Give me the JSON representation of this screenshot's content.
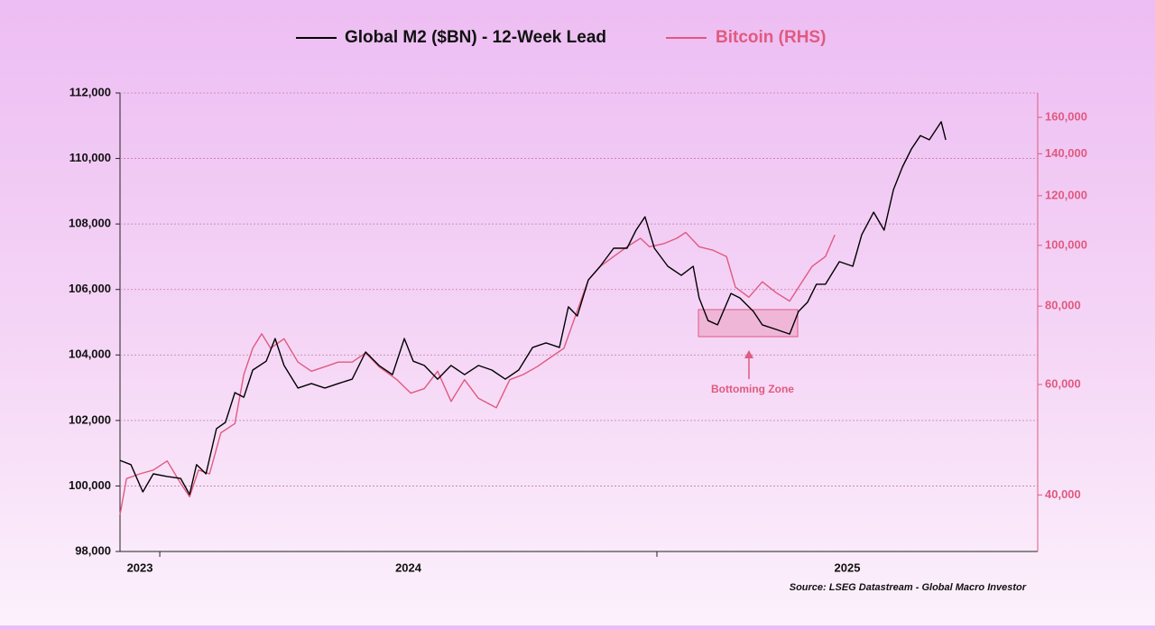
{
  "chart_data": {
    "type": "line",
    "source": "Source: LSEG Datastream - Global Macro Investor",
    "annotation": "Bottoming Zone",
    "legend_position": "top",
    "grid": true,
    "y2_log_scale": true,
    "xlim": [
      2023.92,
      2025.766
    ],
    "xticks": [
      2023,
      2024,
      2025
    ],
    "ylim": [
      98000,
      112000
    ],
    "yticks": [
      {
        "value": 98000,
        "label": "98,000"
      },
      {
        "value": 100000,
        "label": "100,000"
      },
      {
        "value": 102000,
        "label": "102,000"
      },
      {
        "value": 104000,
        "label": "104,000"
      },
      {
        "value": 106000,
        "label": "106,000"
      },
      {
        "value": 108000,
        "label": "108,000"
      },
      {
        "value": 110000,
        "label": "110,000"
      },
      {
        "value": 112000,
        "label": "112,000"
      }
    ],
    "y2lim": [
      32500,
      175000
    ],
    "y2ticks": [
      {
        "value": 40000,
        "label": "40,000"
      },
      {
        "value": 60000,
        "label": "60,000"
      },
      {
        "value": 80000,
        "label": "80,000"
      },
      {
        "value": 100000,
        "label": "100,000"
      },
      {
        "value": 120000,
        "label": "120,000"
      },
      {
        "value": 140000,
        "label": "140,000"
      },
      {
        "value": 160000,
        "label": "160,000"
      }
    ],
    "series": [
      {
        "name": "Global M2 ($BN) - 12-Week Lead",
        "color": "#000000",
        "x": [
          2023.92,
          2023.942,
          2023.966,
          2023.987,
          2024.015,
          2024.042,
          2024.06,
          2024.074,
          2024.093,
          2024.114,
          2024.132,
          2024.151,
          2024.169,
          2024.187,
          2024.214,
          2024.232,
          2024.25,
          2024.278,
          2024.305,
          2024.332,
          2024.359,
          2024.387,
          2024.414,
          2024.441,
          2024.468,
          2024.492,
          2024.51,
          2024.532,
          2024.559,
          2024.586,
          2024.613,
          2024.641,
          2024.668,
          2024.695,
          2024.722,
          2024.75,
          2024.777,
          2024.804,
          2024.822,
          2024.84,
          2024.862,
          2024.886,
          2024.913,
          2024.94,
          2024.958,
          2024.976,
          2024.995,
          2025.022,
          2025.049,
          2025.073,
          2025.085,
          2025.103,
          2025.122,
          2025.149,
          2025.167,
          2025.194,
          2025.212,
          2025.24,
          2025.267,
          2025.285,
          2025.303,
          2025.321,
          2025.339,
          2025.367,
          2025.394,
          2025.412,
          2025.436,
          2025.457,
          2025.476,
          2025.494,
          2025.512,
          2025.53,
          2025.548,
          2025.572,
          2025.581
        ],
        "values": [
          100780,
          100650,
          99820,
          100370,
          100290,
          100230,
          99740,
          100650,
          100370,
          101750,
          101940,
          102850,
          102710,
          103540,
          103810,
          104500,
          103680,
          102990,
          103130,
          102990,
          103130,
          103260,
          104090,
          103680,
          103400,
          104500,
          103810,
          103680,
          103260,
          103680,
          103400,
          103680,
          103540,
          103260,
          103540,
          104230,
          104370,
          104230,
          105470,
          105190,
          106290,
          106710,
          107260,
          107260,
          107810,
          108220,
          107260,
          106710,
          106430,
          106710,
          105740,
          105050,
          104920,
          105880,
          105740,
          105330,
          104920,
          104780,
          104640,
          105330,
          105610,
          106160,
          106160,
          106850,
          106710,
          107670,
          108360,
          107810,
          109050,
          109740,
          110290,
          110700,
          110570,
          111120,
          110570
        ]
      },
      {
        "name": "Bitcoin (RHS)",
        "color": "#e05a7f",
        "axis": "y2",
        "x": [
          2023.92,
          2023.933,
          2023.96,
          2023.987,
          2024.015,
          2024.042,
          2024.06,
          2024.078,
          2024.1,
          2024.123,
          2024.151,
          2024.169,
          2024.187,
          2024.205,
          2024.223,
          2024.25,
          2024.278,
          2024.305,
          2024.332,
          2024.359,
          2024.387,
          2024.414,
          2024.441,
          2024.477,
          2024.505,
          2024.532,
          2024.559,
          2024.586,
          2024.613,
          2024.641,
          2024.677,
          2024.704,
          2024.731,
          2024.759,
          2024.786,
          2024.813,
          2024.84,
          2024.862,
          2024.886,
          2024.913,
          2024.94,
          2024.967,
          2024.985,
          2025.013,
          2025.04,
          2025.058,
          2025.085,
          2025.113,
          2025.14,
          2025.158,
          2025.185,
          2025.212,
          2025.24,
          2025.267,
          2025.285,
          2025.312,
          2025.339,
          2025.358
        ],
        "values": [
          37190,
          42460,
          43220,
          43820,
          45320,
          41740,
          39730,
          43820,
          43220,
          50250,
          51980,
          62220,
          68560,
          72280,
          68560,
          70980,
          65130,
          63000,
          64040,
          65130,
          65130,
          67400,
          64040,
          61060,
          58130,
          59100,
          63000,
          56400,
          61060,
          57040,
          55090,
          61060,
          62220,
          64040,
          66280,
          68560,
          78700,
          88070,
          92570,
          96000,
          99500,
          102630,
          99500,
          100600,
          102630,
          104860,
          99500,
          98250,
          96000,
          85770,
          82660,
          87490,
          84050,
          81490,
          85770,
          92570,
          96000,
          103990
        ]
      }
    ]
  }
}
